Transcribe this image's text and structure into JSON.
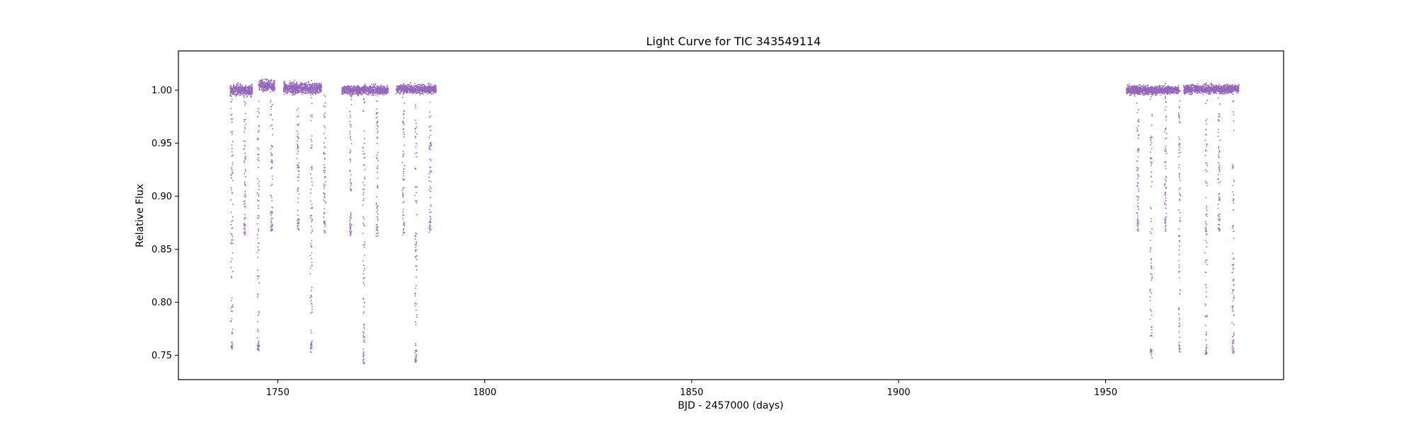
{
  "chart_data": {
    "type": "scatter",
    "title": "Light Curve for TIC 343549114",
    "xlabel": "BJD - 2457000 (days)",
    "ylabel": "Relative Flux",
    "xlim": [
      1726,
      1993
    ],
    "ylim": [
      0.727,
      1.037
    ],
    "x_ticks": [
      1750,
      1800,
      1850,
      1900,
      1950
    ],
    "x_tick_labels": [
      "1750",
      "1800",
      "1850",
      "1900",
      "1950"
    ],
    "y_ticks": [
      0.75,
      0.8,
      0.85,
      0.9,
      0.95,
      1.0
    ],
    "y_tick_labels": [
      "0.75",
      "0.80",
      "0.85",
      "0.90",
      "0.95",
      "1.00"
    ],
    "grid": false,
    "marker_color": "#9467bd",
    "series": [
      {
        "name": "flux",
        "segments": [
          {
            "start": 1738.5,
            "end": 1743.9,
            "baseline": 1.0,
            "noise": 0.005
          },
          {
            "start": 1745.4,
            "end": 1749.3,
            "baseline": 1.004,
            "noise": 0.005
          },
          {
            "start": 1751.4,
            "end": 1760.6,
            "baseline": 1.002,
            "noise": 0.005
          },
          {
            "start": 1765.5,
            "end": 1776.7,
            "baseline": 1.0,
            "noise": 0.004
          },
          {
            "start": 1778.6,
            "end": 1788.3,
            "baseline": 1.001,
            "noise": 0.004
          },
          {
            "start": 1955.0,
            "end": 1967.8,
            "baseline": 1.0,
            "noise": 0.004
          },
          {
            "start": 1968.9,
            "end": 1982.2,
            "baseline": 1.001,
            "noise": 0.004
          }
        ],
        "primary_eclipses": [
          {
            "x": 1738.9,
            "min_flux": 0.754
          },
          {
            "x": 1745.3,
            "min_flux": 0.754
          },
          {
            "x": 1758.1,
            "min_flux": 0.752
          },
          {
            "x": 1770.8,
            "min_flux": 0.742
          },
          {
            "x": 1783.4,
            "min_flux": 0.743
          },
          {
            "x": 1961.0,
            "min_flux": 0.746
          },
          {
            "x": 1967.9,
            "min_flux": 0.752
          },
          {
            "x": 1974.3,
            "min_flux": 0.747
          },
          {
            "x": 1980.8,
            "min_flux": 0.752
          }
        ],
        "secondary_eclipses": [
          {
            "x": 1742.0,
            "min_flux": 0.864
          },
          {
            "x": 1748.5,
            "min_flux": 0.867
          },
          {
            "x": 1754.9,
            "min_flux": 0.868
          },
          {
            "x": 1761.3,
            "min_flux": 0.865
          },
          {
            "x": 1767.6,
            "min_flux": 0.863
          },
          {
            "x": 1774.0,
            "min_flux": 0.863
          },
          {
            "x": 1780.4,
            "min_flux": 0.863
          },
          {
            "x": 1786.8,
            "min_flux": 0.866
          },
          {
            "x": 1957.8,
            "min_flux": 0.867
          },
          {
            "x": 1964.5,
            "min_flux": 0.867
          },
          {
            "x": 1977.4,
            "min_flux": 0.867
          }
        ]
      }
    ]
  }
}
